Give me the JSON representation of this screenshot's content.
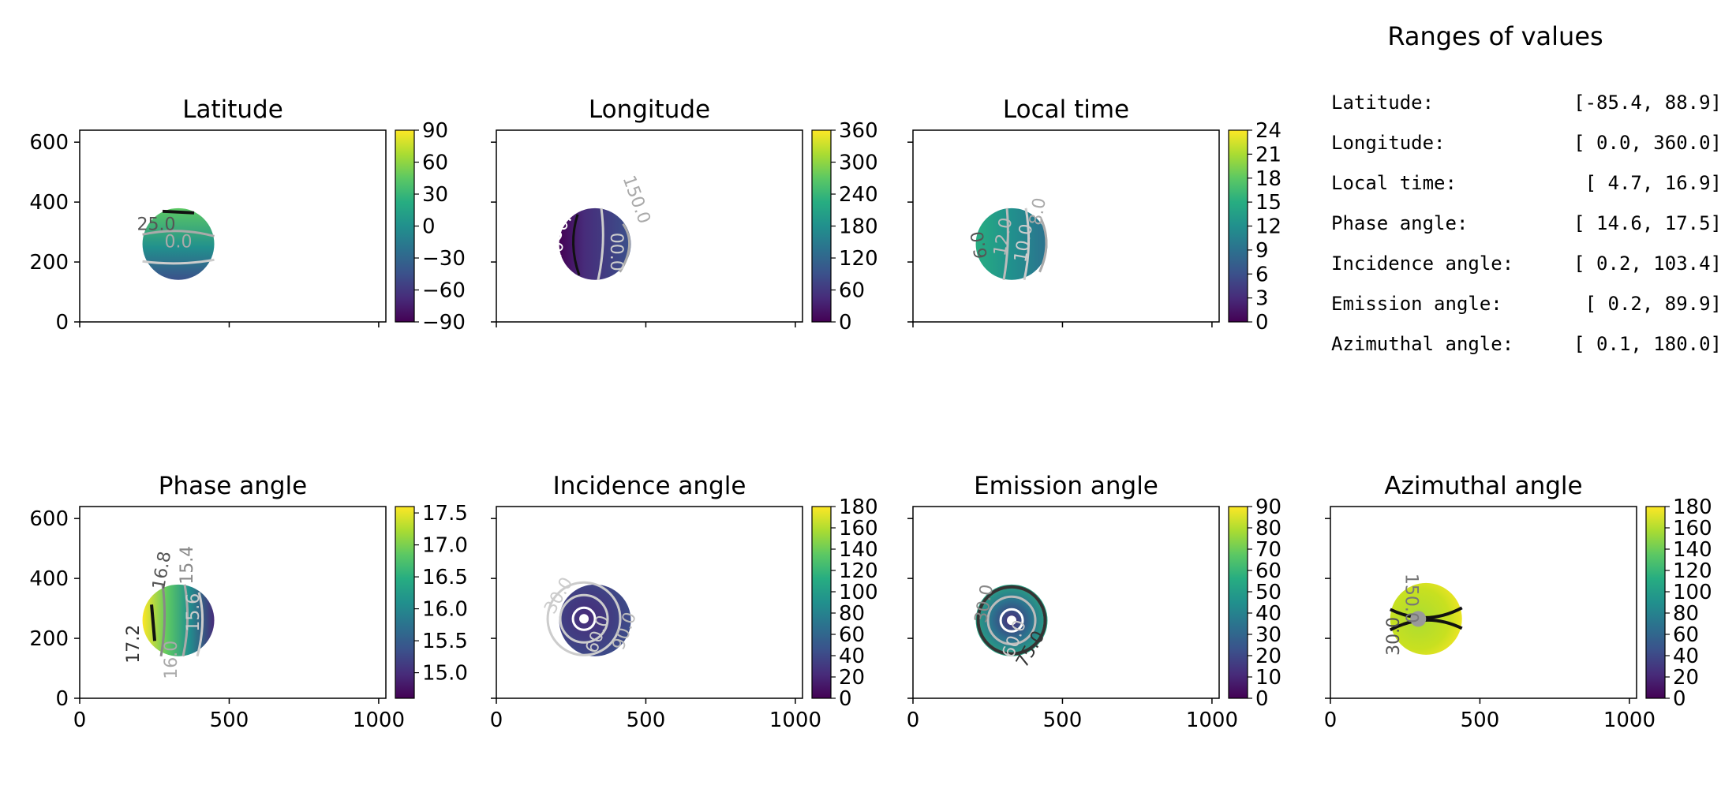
{
  "ranges": {
    "title": "Ranges of values",
    "rows": [
      {
        "label": "Latitude:",
        "value": "[-85.4,  88.9]"
      },
      {
        "label": "Longitude:",
        "value": "[  0.0, 360.0]"
      },
      {
        "label": "Local time:",
        "value": "[  4.7,  16.9]"
      },
      {
        "label": "Phase angle:",
        "value": "[ 14.6,  17.5]"
      },
      {
        "label": "Incidence angle:",
        "value": "[  0.2, 103.4]"
      },
      {
        "label": "Emission angle:",
        "value": "[  0.2,  89.9]"
      },
      {
        "label": "Azimuthal angle:",
        "value": "[  0.1, 180.0]"
      }
    ]
  },
  "colors": {
    "viridis": [
      "#440154",
      "#472c7a",
      "#3b518b",
      "#2c718e",
      "#21908d",
      "#27ad81",
      "#5cc863",
      "#aadc32",
      "#fde725"
    ]
  },
  "chart_data": [
    {
      "type": "heatmap",
      "title": "Latitude",
      "xlim": [
        0,
        1024
      ],
      "ylim": [
        0,
        640
      ],
      "xticks": [
        0,
        500,
        1000
      ],
      "yticks": [
        0,
        200,
        400,
        600
      ],
      "show_xticklabels": false,
      "show_yticklabels": true,
      "disc": {
        "cx": 330,
        "cy": 260,
        "r": 120
      },
      "colorbar": {
        "vmin": -90,
        "vmax": 90,
        "ticks": [
          -90,
          -60,
          -30,
          0,
          30,
          60,
          90
        ],
        "tick_labels": [
          "−90",
          "−60",
          "−30",
          "0",
          "30",
          "60",
          "90"
        ]
      },
      "contour_labels": [
        "25.0",
        "0.0"
      ]
    },
    {
      "type": "heatmap",
      "title": "Longitude",
      "xlim": [
        0,
        1024
      ],
      "ylim": [
        0,
        640
      ],
      "xticks": [
        0,
        500,
        1000
      ],
      "yticks": [
        0,
        200,
        400,
        600
      ],
      "show_xticklabels": false,
      "show_yticklabels": false,
      "disc": {
        "cx": 330,
        "cy": 260,
        "r": 120
      },
      "colorbar": {
        "vmin": 0,
        "vmax": 360,
        "ticks": [
          0,
          60,
          120,
          180,
          240,
          300,
          360
        ],
        "tick_labels": [
          "0",
          "60",
          "120",
          "180",
          "240",
          "300",
          "360"
        ]
      },
      "contour_labels": [
        "150.0",
        "50.0",
        "00.0",
        "50.0"
      ]
    },
    {
      "type": "heatmap",
      "title": "Local time",
      "xlim": [
        0,
        1024
      ],
      "ylim": [
        0,
        640
      ],
      "xticks": [
        0,
        500,
        1000
      ],
      "yticks": [
        0,
        200,
        400,
        600
      ],
      "show_xticklabels": false,
      "show_yticklabels": false,
      "disc": {
        "cx": 330,
        "cy": 260,
        "r": 120
      },
      "colorbar": {
        "vmin": 0,
        "vmax": 24,
        "ticks": [
          0,
          3,
          6,
          9,
          12,
          15,
          18,
          21,
          24
        ],
        "tick_labels": [
          "0",
          "3",
          "6",
          "9",
          "12",
          "15",
          "18",
          "21",
          "24"
        ]
      },
      "contour_labels": [
        "12.0",
        "10.0",
        "8.0",
        "6.0"
      ]
    },
    {
      "type": "heatmap",
      "title": "Phase angle",
      "xlim": [
        0,
        1024
      ],
      "ylim": [
        0,
        640
      ],
      "xticks": [
        0,
        500,
        1000
      ],
      "yticks": [
        0,
        200,
        400,
        600
      ],
      "show_xticklabels": true,
      "show_yticklabels": true,
      "disc": {
        "cx": 330,
        "cy": 260,
        "r": 120
      },
      "colorbar": {
        "vmin": 14.6,
        "vmax": 17.6,
        "ticks": [
          15.0,
          15.5,
          16.0,
          16.5,
          17.0,
          17.5
        ],
        "tick_labels": [
          "15.0",
          "15.5",
          "16.0",
          "16.5",
          "17.0",
          "17.5"
        ]
      },
      "contour_labels": [
        "16.8",
        "17.2",
        "16.0",
        "15.6",
        "15.4"
      ]
    },
    {
      "type": "heatmap",
      "title": "Incidence angle",
      "xlim": [
        0,
        1024
      ],
      "ylim": [
        0,
        640
      ],
      "xticks": [
        0,
        500,
        1000
      ],
      "yticks": [
        0,
        200,
        400,
        600
      ],
      "show_xticklabels": true,
      "show_yticklabels": false,
      "disc": {
        "cx": 330,
        "cy": 260,
        "r": 120
      },
      "colorbar": {
        "vmin": 0,
        "vmax": 180,
        "ticks": [
          0,
          20,
          40,
          60,
          80,
          100,
          120,
          140,
          160,
          180
        ],
        "tick_labels": [
          "0",
          "20",
          "40",
          "60",
          "80",
          "100",
          "120",
          "140",
          "160",
          "180"
        ]
      },
      "contour_labels": [
        "30.0",
        "60.0",
        "90.0"
      ]
    },
    {
      "type": "heatmap",
      "title": "Emission angle",
      "xlim": [
        0,
        1024
      ],
      "ylim": [
        0,
        640
      ],
      "xticks": [
        0,
        500,
        1000
      ],
      "yticks": [
        0,
        200,
        400,
        600
      ],
      "show_xticklabels": true,
      "show_yticklabels": false,
      "disc": {
        "cx": 330,
        "cy": 260,
        "r": 120
      },
      "colorbar": {
        "vmin": 0,
        "vmax": 90,
        "ticks": [
          0,
          10,
          20,
          30,
          40,
          50,
          60,
          70,
          80,
          90
        ],
        "tick_labels": [
          "0",
          "10",
          "20",
          "30",
          "40",
          "50",
          "60",
          "70",
          "80",
          "90"
        ]
      },
      "contour_labels": [
        "30.0",
        "60.0",
        "75.0"
      ]
    },
    {
      "type": "heatmap",
      "title": "Azimuthal angle",
      "xlim": [
        0,
        1024
      ],
      "ylim": [
        0,
        640
      ],
      "xticks": [
        0,
        500,
        1000
      ],
      "yticks": [
        0,
        200,
        400,
        600
      ],
      "show_xticklabels": true,
      "show_yticklabels": false,
      "disc": {
        "cx": 320,
        "cy": 265,
        "r": 120
      },
      "colorbar": {
        "vmin": 0,
        "vmax": 180,
        "ticks": [
          0,
          20,
          40,
          60,
          80,
          100,
          120,
          140,
          160,
          180
        ],
        "tick_labels": [
          "0",
          "20",
          "40",
          "60",
          "80",
          "100",
          "120",
          "140",
          "160",
          "180"
        ]
      },
      "contour_labels": [
        "150.0",
        "30.0"
      ]
    }
  ]
}
